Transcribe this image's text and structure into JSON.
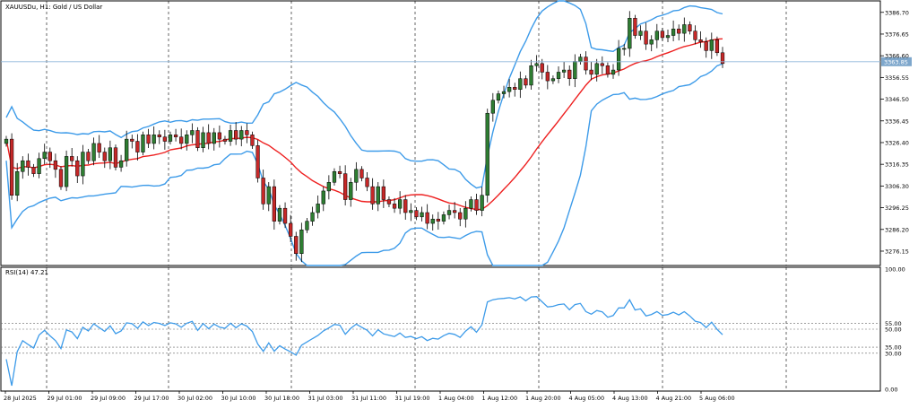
{
  "chart_data": [
    {
      "type": "candlestick",
      "symbol": "XAUUSDu",
      "timeframe": "H1",
      "title": "XAUUSDu, H1:  Gold / US Dollar",
      "current_price": "3363.85",
      "price_ticks": [
        "3386.70",
        "3376.65",
        "3366.60",
        "3356.55",
        "3346.50",
        "3336.45",
        "3326.40",
        "3316.35",
        "3306.30",
        "3296.25",
        "3286.20",
        "3276.15"
      ],
      "ylim": [
        3269.5,
        3392.0
      ],
      "x_labels": [
        "28 Jul 2025",
        "29 Jul 01:00",
        "29 Jul 09:00",
        "29 Jul 17:00",
        "30 Jul 02:00",
        "30 Jul 10:00",
        "30 Jul 18:00",
        "31 Jul 03:00",
        "31 Jul 11:00",
        "31 Jul 19:00",
        "1 Aug 04:00",
        "1 Aug 12:00",
        "1 Aug 20:00",
        "4 Aug 05:00",
        "4 Aug 13:00",
        "4 Aug 21:00",
        "5 Aug 06:00"
      ],
      "indicators": [
        "Bollinger Bands",
        "Moving Average"
      ],
      "colors": {
        "bull": "#2e7d32",
        "bear": "#c62828",
        "bands": "#3d9be9",
        "ma": "#ee2020",
        "price_line": "#8fb6d9"
      }
    },
    {
      "type": "line",
      "label": "RSI(14) 47.21",
      "levels": [
        "100.00",
        "55.00",
        "50.00",
        "35.00",
        "30.00",
        "0.00"
      ],
      "ylim": [
        0,
        100
      ]
    }
  ]
}
